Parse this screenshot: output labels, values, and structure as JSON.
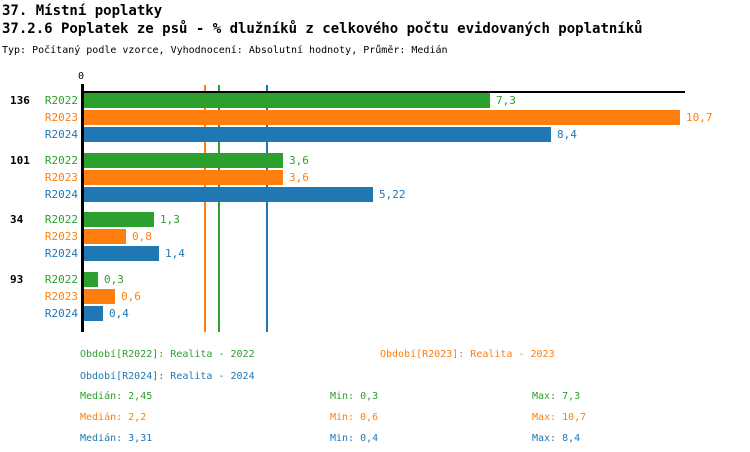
{
  "header": {
    "title": "37. Místní poplatky",
    "subtitle": "37.2.6 Poplatek ze psů - % dlužníků z celkového počtu evidovaných poplatníků",
    "meta": "Typ: Počítaný podle vzorce, Vyhodnocení: Absolutní hodnoty, Průměr: Medián"
  },
  "colors": {
    "r2022": "#2ca02c",
    "r2023": "#ff7f0e",
    "r2024": "#1f77b4",
    "axis": "#000000",
    "background": "#ffffff"
  },
  "chart_data": {
    "type": "bar",
    "orientation": "horizontal",
    "title": "37.2.6 Poplatek ze psů - % dlužníků z celkového počtu evidovaných poplatníků",
    "categories": [
      "136",
      "101",
      "34",
      "93"
    ],
    "series": [
      {
        "name": "R2022",
        "color": "#2ca02c",
        "values": [
          7.3,
          3.6,
          1.3,
          0.3
        ],
        "value_labels": [
          "7,3",
          "3,6",
          "1,3",
          "0,3"
        ],
        "median": 2.45,
        "min": 0.3,
        "max": 7.3
      },
      {
        "name": "R2023",
        "color": "#ff7f0e",
        "values": [
          10.7,
          3.6,
          0.8,
          0.6
        ],
        "value_labels": [
          "10,7",
          "3,6",
          "0,8",
          "0,6"
        ],
        "median": 2.2,
        "min": 0.6,
        "max": 10.7
      },
      {
        "name": "R2024",
        "color": "#1f77b4",
        "values": [
          8.4,
          5.22,
          1.4,
          0.4
        ],
        "value_labels": [
          "8,4",
          "5,22",
          "1,4",
          "0,4"
        ],
        "median": 3.31,
        "min": 0.4,
        "max": 8.4
      }
    ],
    "x_axis": {
      "zero_label": "0",
      "min": 0,
      "max": 10.7,
      "ticks_shown": [
        "0"
      ]
    },
    "median_gridlines": [
      {
        "series": "R2023",
        "value": 2.2,
        "color": "#ff7f0e"
      },
      {
        "series": "R2022",
        "value": 2.45,
        "color": "#2ca02c"
      },
      {
        "series": "R2024",
        "value": 3.31,
        "color": "#1f77b4"
      }
    ],
    "grid": "median-lines-only",
    "legend_position": "bottom"
  },
  "legend": {
    "r2022": "Období[R2022]: Realita - 2022",
    "r2023": "Období[R2023]: Realita - 2023",
    "r2024": "Období[R2024]: Realita - 2024"
  },
  "stats": {
    "rows": [
      {
        "series": "R2022",
        "median": "Medián: 2,45",
        "min": "Min: 0,3",
        "max": "Max: 7,3"
      },
      {
        "series": "R2023",
        "median": "Medián: 2,2",
        "min": "Min: 0,6",
        "max": "Max: 10,7"
      },
      {
        "series": "R2024",
        "median": "Medián: 3,31",
        "min": "Min: 0,4",
        "max": "Max: 8,4"
      }
    ]
  }
}
